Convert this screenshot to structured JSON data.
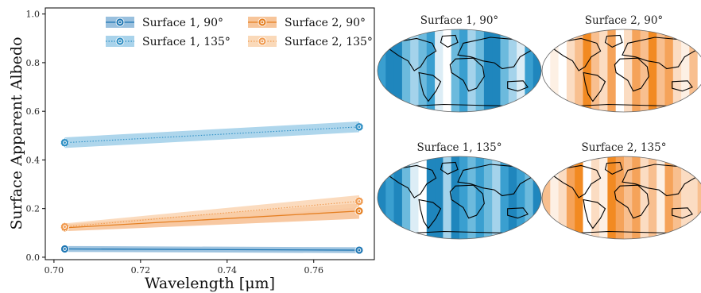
{
  "chart_data": {
    "type": "line",
    "xlabel": "Wavelength [μm]",
    "ylabel": "Surface Apparent Albedo",
    "xlim": [
      0.698,
      0.774
    ],
    "ylim": [
      -0.01,
      1.025
    ],
    "x_ticks": [
      0.7,
      0.72,
      0.74,
      0.76
    ],
    "x_tick_labels": [
      "0.70",
      "0.72",
      "0.74",
      "0.76"
    ],
    "y_ticks": [
      0.0,
      0.2,
      0.4,
      0.6,
      0.8,
      1.0
    ],
    "y_tick_labels": [
      "0.0",
      "0.2",
      "0.4",
      "0.6",
      "0.8",
      "1.0"
    ],
    "x": [
      0.7025,
      0.7705
    ],
    "series": [
      {
        "name": "Surface 1, 90°",
        "values": [
          0.034,
          0.029
        ],
        "band": [
          0.012,
          0.012
        ],
        "color": "#1f77b4",
        "band_color": "#7fb0d6",
        "style": "solid"
      },
      {
        "name": "Surface 1, 135°",
        "values": [
          0.471,
          0.536
        ],
        "band": [
          0.022,
          0.022
        ],
        "color": "#2f8fc4",
        "band_color": "#93c8e6",
        "style": "dotted"
      },
      {
        "name": "Surface 2, 90°",
        "values": [
          0.121,
          0.19
        ],
        "band": [
          0.014,
          0.032
        ],
        "color": "#e57f21",
        "band_color": "#f5b681",
        "style": "solid"
      },
      {
        "name": "Surface 2, 135°",
        "values": [
          0.125,
          0.23
        ],
        "band": [
          0.014,
          0.025
        ],
        "color": "#f09a4f",
        "band_color": "#f9cfa8",
        "style": "dotted"
      }
    ],
    "legend_position": "top-right",
    "grid": false
  },
  "maps": {
    "titles": [
      "Surface 1, 90°",
      "Surface 2, 90°",
      "Surface 1, 135°",
      "Surface 2, 135°"
    ]
  },
  "colors": {
    "blue_bands": [
      "#1f86bd",
      "#3a9fd0",
      "#6cbadd",
      "#a4d3eb",
      "#dcedf6",
      "#ffffff"
    ],
    "orange_bands": [
      "#f28a22",
      "#f5a35a",
      "#f8bf8f",
      "#fbdcc2",
      "#fdf0e4",
      "#ffffff"
    ]
  }
}
